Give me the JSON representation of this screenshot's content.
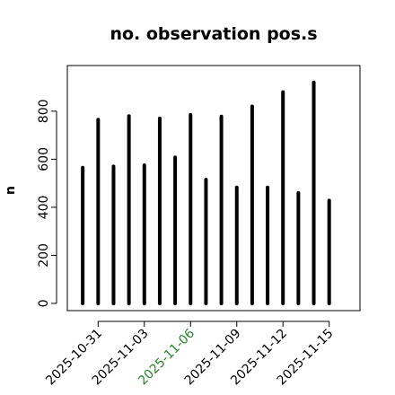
{
  "chart_data": {
    "type": "bar",
    "title": "no. observation pos.s",
    "xlabel": "",
    "ylabel": "n",
    "ylim": [
      -30,
      990
    ],
    "yticks": [
      0,
      200,
      400,
      600,
      800
    ],
    "y_tick_labels": [
      "0",
      "200",
      "400",
      "600",
      "800"
    ],
    "x_dates": [
      "2025-10-30",
      "2025-10-31",
      "2025-11-01",
      "2025-11-02",
      "2025-11-03",
      "2025-11-04",
      "2025-11-05",
      "2025-11-06",
      "2025-11-07",
      "2025-11-08",
      "2025-11-09",
      "2025-11-10",
      "2025-11-11",
      "2025-11-12",
      "2025-11-13",
      "2025-11-14",
      "2025-11-15",
      "2025-11-16"
    ],
    "values": [
      565,
      765,
      570,
      780,
      575,
      770,
      608,
      785,
      515,
      778,
      483,
      820,
      483,
      880,
      460,
      920,
      428,
      0
    ],
    "xlim": [
      "2025-10-29",
      "2025-11-17"
    ],
    "xticks": [
      "2025-10-31",
      "2025-11-03",
      "2025-11-06",
      "2025-11-09",
      "2025-11-12",
      "2025-11-15"
    ],
    "x_tick_labels": [
      "2025-10-31",
      "2025-11-03",
      "2025-11-06",
      "2025-11-09",
      "2025-11-12",
      "2025-11-15"
    ],
    "x_tick_colors": [
      "#000000",
      "#000000",
      "#228b22",
      "#000000",
      "#000000",
      "#000000"
    ],
    "bar_color": "#000000",
    "grid": false,
    "legend": "none"
  }
}
